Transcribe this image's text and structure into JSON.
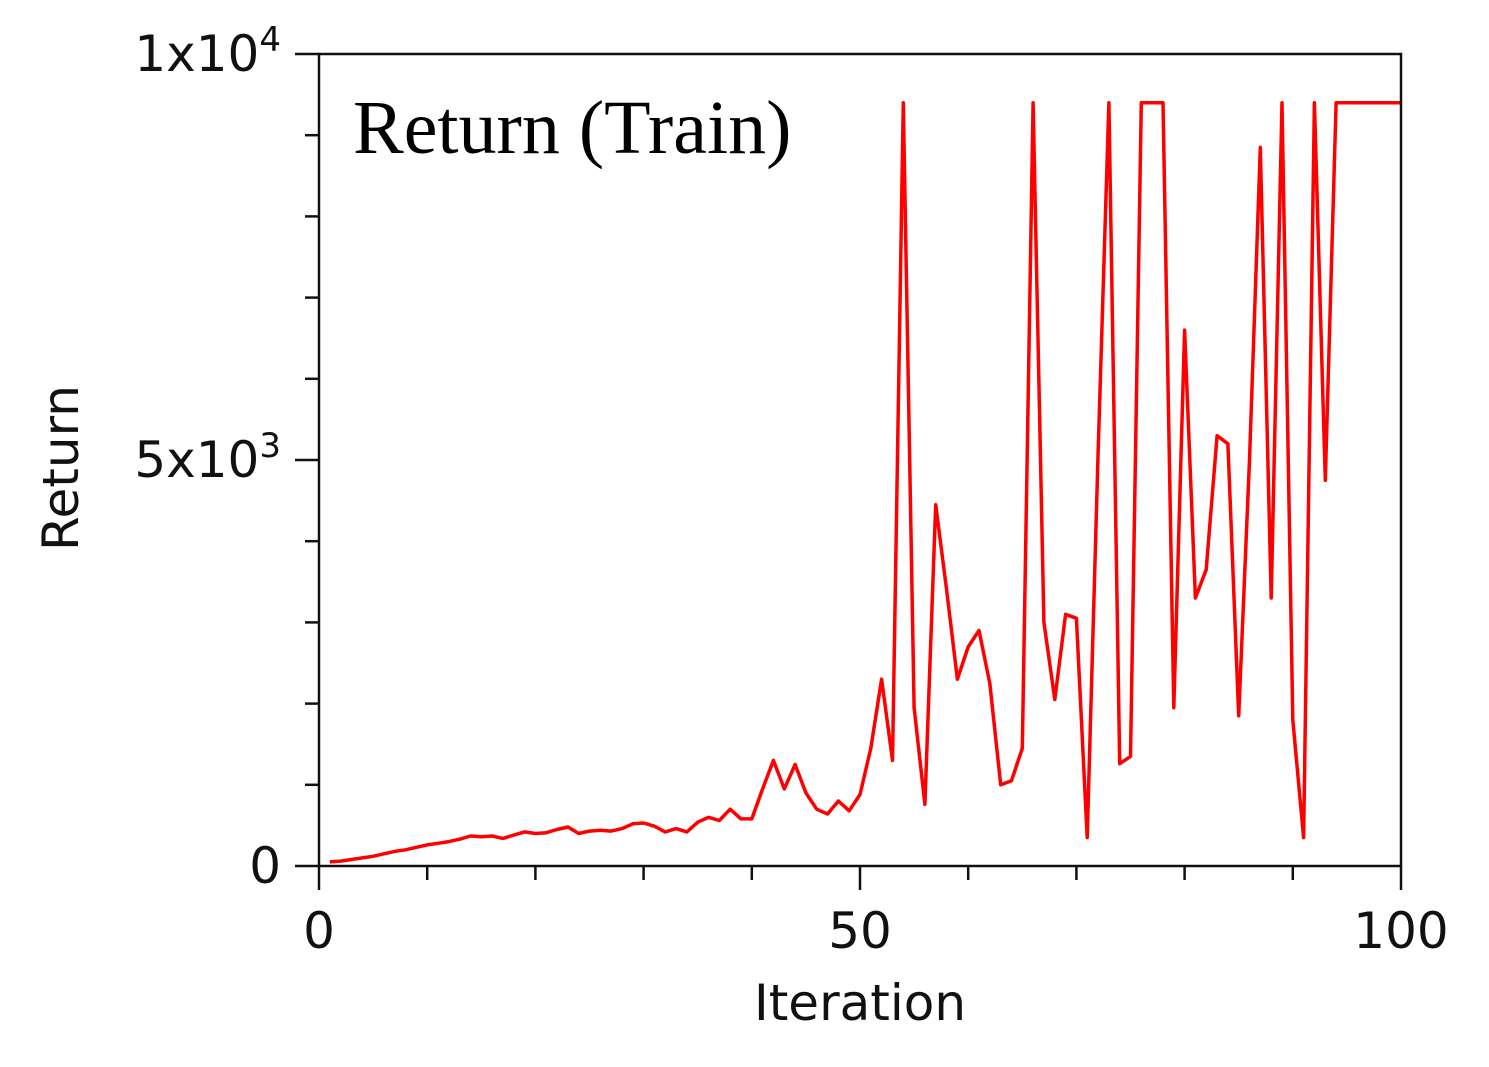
{
  "chart_data": {
    "type": "line",
    "annotation": "Return (Train)",
    "xlabel": "Iteration",
    "ylabel": "Return",
    "xlim": [
      0,
      100
    ],
    "ylim": [
      0,
      10000
    ],
    "x_ticks": [
      {
        "value": 0,
        "label": "0"
      },
      {
        "value": 50,
        "label": "50"
      },
      {
        "value": 100,
        "label": "100"
      }
    ],
    "x_minor_ticks": [
      10,
      20,
      30,
      40,
      60,
      70,
      80,
      90
    ],
    "y_ticks": [
      {
        "value": 0,
        "base": "0",
        "exp": ""
      },
      {
        "value": 5000,
        "base": "5x10",
        "exp": "3"
      },
      {
        "value": 10000,
        "base": "1x10",
        "exp": "4"
      }
    ],
    "y_minor_ticks": [
      1000,
      2000,
      3000,
      4000,
      6000,
      7000,
      8000,
      9000
    ],
    "grid": false,
    "series": [
      {
        "color": "#ff0000",
        "x": [
          1,
          2,
          3,
          4,
          5,
          6,
          7,
          8,
          9,
          10,
          11,
          12,
          13,
          14,
          15,
          16,
          17,
          18,
          19,
          20,
          21,
          22,
          23,
          24,
          25,
          26,
          27,
          28,
          29,
          30,
          31,
          32,
          33,
          34,
          35,
          36,
          37,
          38,
          39,
          40,
          41,
          42,
          43,
          44,
          45,
          46,
          47,
          48,
          49,
          50,
          51,
          52,
          53,
          54,
          55,
          56,
          57,
          58,
          59,
          60,
          61,
          62,
          63,
          64,
          65,
          66,
          67,
          68,
          69,
          70,
          71,
          72,
          73,
          74,
          75,
          76,
          77,
          78,
          79,
          80,
          81,
          82,
          83,
          84,
          85,
          86,
          87,
          88,
          89,
          90,
          91,
          92,
          93,
          94,
          95,
          96,
          97,
          98,
          99,
          100
        ],
        "y": [
          50,
          60,
          80,
          100,
          120,
          150,
          180,
          200,
          230,
          260,
          280,
          300,
          330,
          370,
          360,
          370,
          340,
          380,
          420,
          400,
          410,
          450,
          480,
          400,
          430,
          440,
          430,
          460,
          520,
          530,
          490,
          420,
          460,
          420,
          540,
          600,
          560,
          700,
          580,
          580,
          950,
          1300,
          950,
          1250,
          900,
          700,
          640,
          800,
          680,
          880,
          1450,
          2300,
          1300,
          9400,
          1950,
          760,
          4450,
          3400,
          2300,
          2700,
          2900,
          2250,
          1000,
          1050,
          1450,
          9400,
          3000,
          2050,
          3100,
          3050,
          350,
          5050,
          9400,
          1260,
          1350,
          9400,
          9400,
          9400,
          1950,
          6600,
          3300,
          3650,
          5300,
          5200,
          1850,
          5000,
          8850,
          3300,
          9400,
          1800,
          350,
          9400,
          4750,
          9400,
          9400,
          9400,
          9400,
          9400,
          9400,
          9400
        ]
      }
    ]
  }
}
